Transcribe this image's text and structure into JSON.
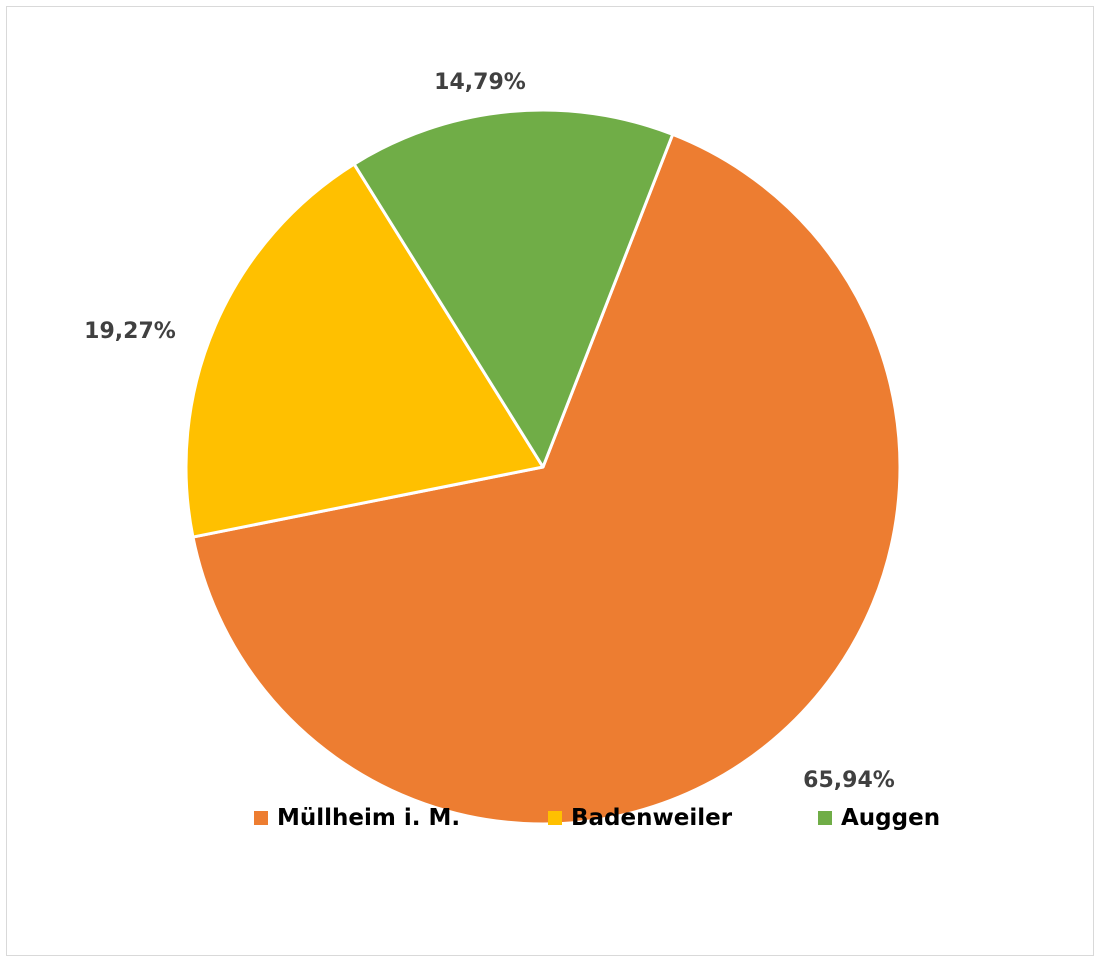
{
  "chart_data": {
    "type": "pie",
    "title": "",
    "slices": [
      {
        "name": "Müllheim i. M.",
        "value": 65.94,
        "label": "65,94%",
        "color": "#ED7D31"
      },
      {
        "name": "Badenweiler",
        "value": 19.27,
        "label": "19,27%",
        "color": "#FFC000"
      },
      {
        "name": "Auggen",
        "value": 14.79,
        "label": "14,79%",
        "color": "#70AD47"
      }
    ],
    "legend_position": "bottom",
    "label_color": "#404040"
  }
}
